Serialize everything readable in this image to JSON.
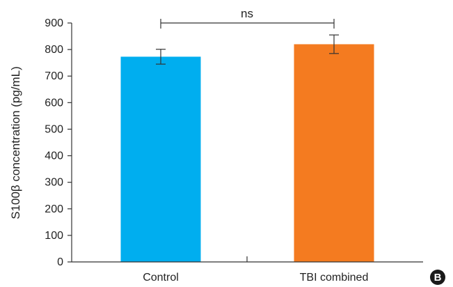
{
  "chart_data": {
    "type": "bar",
    "categories": [
      "Control",
      "TBI combined"
    ],
    "values": [
      773,
      820
    ],
    "error": [
      28,
      35
    ],
    "colors": [
      "#00AEEF",
      "#F47B20"
    ],
    "title": "",
    "xlabel": "",
    "ylabel": "S100β concentration (pg/mL)",
    "ylim": [
      0,
      900
    ],
    "yticks": [
      "0",
      "100",
      "200",
      "300",
      "400",
      "500",
      "600",
      "700",
      "800",
      "900"
    ],
    "grid": false,
    "annotation": "ns"
  },
  "panel_label": "B"
}
